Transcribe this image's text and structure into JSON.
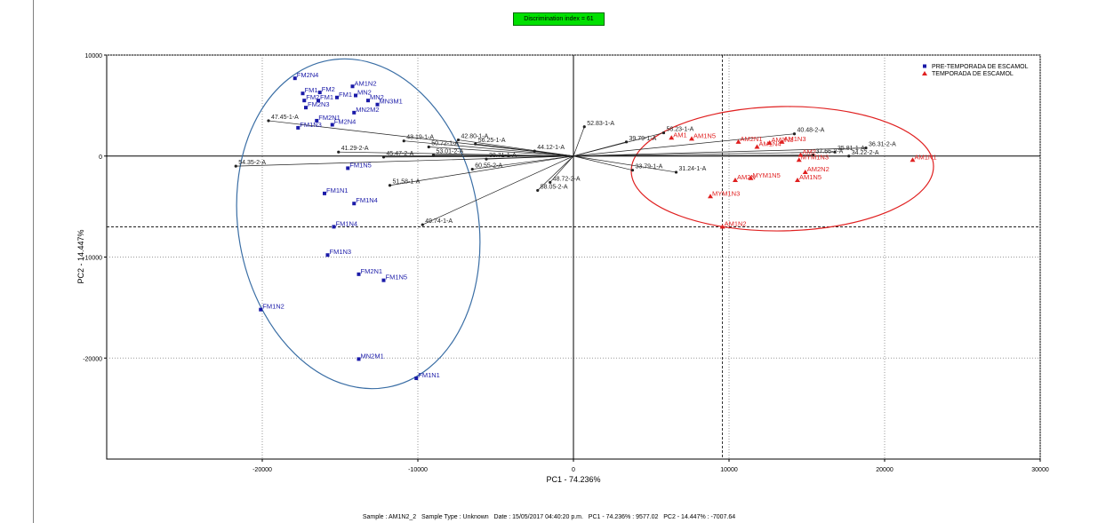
{
  "badge": {
    "text": "Discrimination index = 61",
    "color": "#00e000"
  },
  "status_line": "Sample : AM1N2_2   Sample Type : Unknown   Date : 15/05/2017 04:40:20 p.m.   PC1 - 74.236% : 9577.02   PC2 - 14.447% : -7007.64",
  "chart_data": {
    "type": "scatter",
    "title": "",
    "xlabel": "PC1 - 74.236%",
    "ylabel": "PC2 - 14.447%",
    "xlim": [
      -30000,
      30000
    ],
    "ylim": [
      -30000,
      10000
    ],
    "xticks": [
      -20000,
      -10000,
      0,
      10000,
      20000,
      30000
    ],
    "yticks": [
      10000,
      0,
      -10000,
      -20000
    ],
    "xtick_labels": [
      "-20000",
      "-10000",
      "0",
      "10000",
      "20000",
      "30000"
    ],
    "ytick_labels": [
      "10000",
      "0",
      "-10000",
      "-20000"
    ],
    "grid": true,
    "legend_position": "top-right",
    "crosshair": {
      "x": 9577.02,
      "y": -7007.64
    },
    "series": [
      {
        "name": "PRE-TEMPORADA DE ESCAMOL",
        "color": "#1a1aa8",
        "marker": "square",
        "points": [
          {
            "label": "FM2N4",
            "x": -17900,
            "y": 7700
          },
          {
            "label": "AM1N2",
            "x": -14200,
            "y": 6900
          },
          {
            "label": "FM1",
            "x": -17400,
            "y": 6200
          },
          {
            "label": "FM2",
            "x": -16300,
            "y": 6300
          },
          {
            "label": "FM1",
            "x": -15200,
            "y": 5800
          },
          {
            "label": "MN2",
            "x": -14000,
            "y": 6000
          },
          {
            "label": "FM2",
            "x": -17300,
            "y": 5500
          },
          {
            "label": "FM1",
            "x": -16400,
            "y": 5500
          },
          {
            "label": "MN2",
            "x": -13200,
            "y": 5500
          },
          {
            "label": "FM2N3",
            "x": -17200,
            "y": 4800
          },
          {
            "label": "MN3M1",
            "x": -12600,
            "y": 5100
          },
          {
            "label": "MN2M2",
            "x": -14100,
            "y": 4300
          },
          {
            "label": "FM2N1",
            "x": -16500,
            "y": 3500
          },
          {
            "label": "FM2N4",
            "x": -15500,
            "y": 3100
          },
          {
            "label": "FM1N3",
            "x": -17700,
            "y": 2800
          },
          {
            "label": "FM1N5",
            "x": -14500,
            "y": -1200
          },
          {
            "label": "FM1N1",
            "x": -16000,
            "y": -3700
          },
          {
            "label": "FM1N4",
            "x": -14100,
            "y": -4700
          },
          {
            "label": "FM1N4",
            "x": -15400,
            "y": -7000
          },
          {
            "label": "FM1N3",
            "x": -15800,
            "y": -9800
          },
          {
            "label": "FM2N1",
            "x": -13800,
            "y": -11700
          },
          {
            "label": "FM1N5",
            "x": -12200,
            "y": -12300
          },
          {
            "label": "FM1N2",
            "x": -20100,
            "y": -15200
          },
          {
            "label": "MN2M1",
            "x": -13800,
            "y": -20100
          },
          {
            "label": "FM1N1",
            "x": -10100,
            "y": -22000
          }
        ]
      },
      {
        "name": "TEMPORADA DE ESCAMOL",
        "color": "#e02020",
        "marker": "triangle",
        "points": [
          {
            "label": "AM1N1",
            "x": 21800,
            "y": -400
          },
          {
            "label": "AM2N2",
            "x": 14900,
            "y": -1600
          },
          {
            "label": "AM1N5",
            "x": 14400,
            "y": -2400
          },
          {
            "label": "MYM1N3",
            "x": 14500,
            "y": -400
          },
          {
            "label": "MYM1N5",
            "x": 11400,
            "y": -2200
          },
          {
            "label": "AM2N",
            "x": 10400,
            "y": -2400
          },
          {
            "label": "MYM1N3",
            "x": 8800,
            "y": -4000
          },
          {
            "label": "AM1N2",
            "x": 9577.02,
            "y": -7007.64
          },
          {
            "label": "AM1N5",
            "x": 7600,
            "y": 1700
          },
          {
            "label": "AM1",
            "x": 6300,
            "y": 1800
          },
          {
            "label": "AM2N1",
            "x": 10600,
            "y": 1400
          },
          {
            "label": "AM2N3",
            "x": 12600,
            "y": 1300
          },
          {
            "label": "AM1N3",
            "x": 13400,
            "y": 1400
          },
          {
            "label": "AM1N4",
            "x": 11800,
            "y": 900
          },
          {
            "label": "AM2",
            "x": 14600,
            "y": 100
          }
        ]
      }
    ],
    "loadings": [
      {
        "label": "54.35-2-A",
        "x": -21700,
        "y": -1000
      },
      {
        "label": "47.45-1-A",
        "x": -19600,
        "y": 3500
      },
      {
        "label": "41.29-2-A",
        "x": -15100,
        "y": 400
      },
      {
        "label": "43.19-1-A",
        "x": -10900,
        "y": 1500
      },
      {
        "label": "45.47-2-A",
        "x": -12200,
        "y": -100
      },
      {
        "label": "50.72-1-A",
        "x": -9300,
        "y": 900
      },
      {
        "label": "53.01-2-A",
        "x": -9000,
        "y": 100
      },
      {
        "label": "42.80-1-A",
        "x": -7400,
        "y": 1600
      },
      {
        "label": "56.25-1-A",
        "x": -6300,
        "y": 1200
      },
      {
        "label": "44.12-1-A",
        "x": -2500,
        "y": 500
      },
      {
        "label": "38.71-1-A",
        "x": -5600,
        "y": -300
      },
      {
        "label": "60.55-2-A",
        "x": -6500,
        "y": -1300
      },
      {
        "label": "51.58-1-A",
        "x": -11800,
        "y": -2900
      },
      {
        "label": "49.74-1-A",
        "x": -9700,
        "y": -6800
      },
      {
        "label": "58.05-2-A",
        "x": -2300,
        "y": -3400
      },
      {
        "label": "48.72-2-A",
        "x": -1500,
        "y": -2600
      },
      {
        "label": "52.83-1-A",
        "x": 700,
        "y": 2900
      },
      {
        "label": "39.79-1-A",
        "x": 3400,
        "y": 1400
      },
      {
        "label": "33.79-1-A",
        "x": 3800,
        "y": -1400
      },
      {
        "label": "31.24-1-A",
        "x": 6600,
        "y": -1600
      },
      {
        "label": "58.23-1-A",
        "x": 5800,
        "y": 2300
      },
      {
        "label": "40.48-2-A",
        "x": 14200,
        "y": 2200
      },
      {
        "label": "36.31-2-A",
        "x": 18800,
        "y": 800
      },
      {
        "label": "34.22-2-A",
        "x": 17700,
        "y": 0
      },
      {
        "label": "35.81-1-A",
        "x": 16800,
        "y": 400
      },
      {
        "label": "37.66-2-A",
        "x": 15400,
        "y": 100
      }
    ]
  }
}
